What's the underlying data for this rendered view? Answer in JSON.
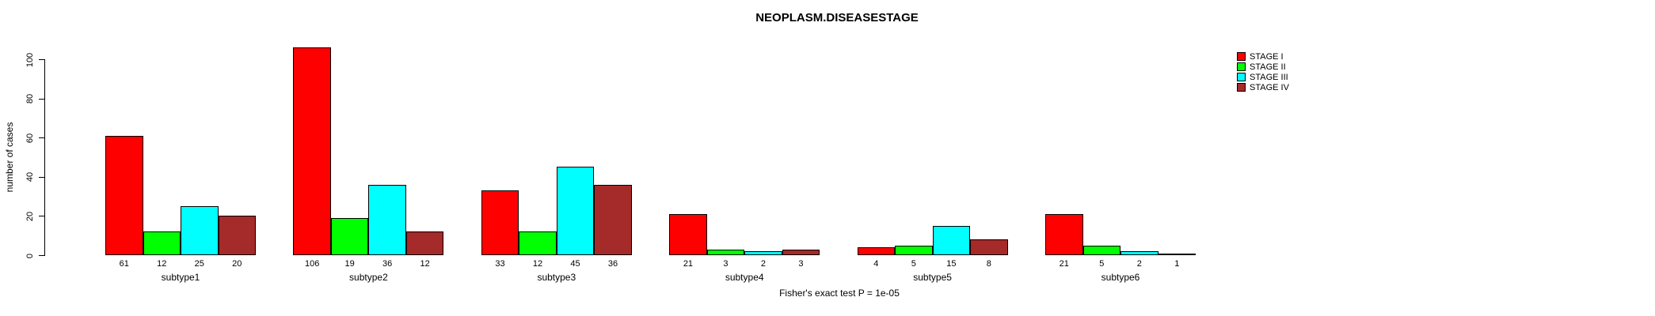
{
  "chart_data": {
    "type": "bar",
    "title": "NEOPLASM.DISEASESTAGE",
    "ylabel": "number of cases",
    "xlabel": "",
    "categories": [
      "subtype1",
      "subtype2",
      "subtype3",
      "subtype4",
      "subtype5",
      "subtype6"
    ],
    "series": [
      {
        "name": "STAGE I",
        "color": "#FF0000",
        "values": [
          61,
          106,
          33,
          21,
          4,
          21
        ]
      },
      {
        "name": "STAGE II",
        "color": "#00FF00",
        "values": [
          12,
          19,
          12,
          3,
          5,
          5
        ]
      },
      {
        "name": "STAGE III",
        "color": "#00FFFF",
        "values": [
          25,
          36,
          45,
          2,
          15,
          2
        ]
      },
      {
        "name": "STAGE IV",
        "color": "#A52A2A",
        "values": [
          20,
          12,
          36,
          3,
          8,
          1
        ]
      }
    ],
    "yticks": [
      0,
      20,
      40,
      60,
      80,
      100
    ],
    "ylim": [
      0,
      110
    ],
    "bar_value_labels_shown": true,
    "grid": false,
    "legend_position": "top-right",
    "annotation": "Fisher's exact test P = 1e-05"
  }
}
